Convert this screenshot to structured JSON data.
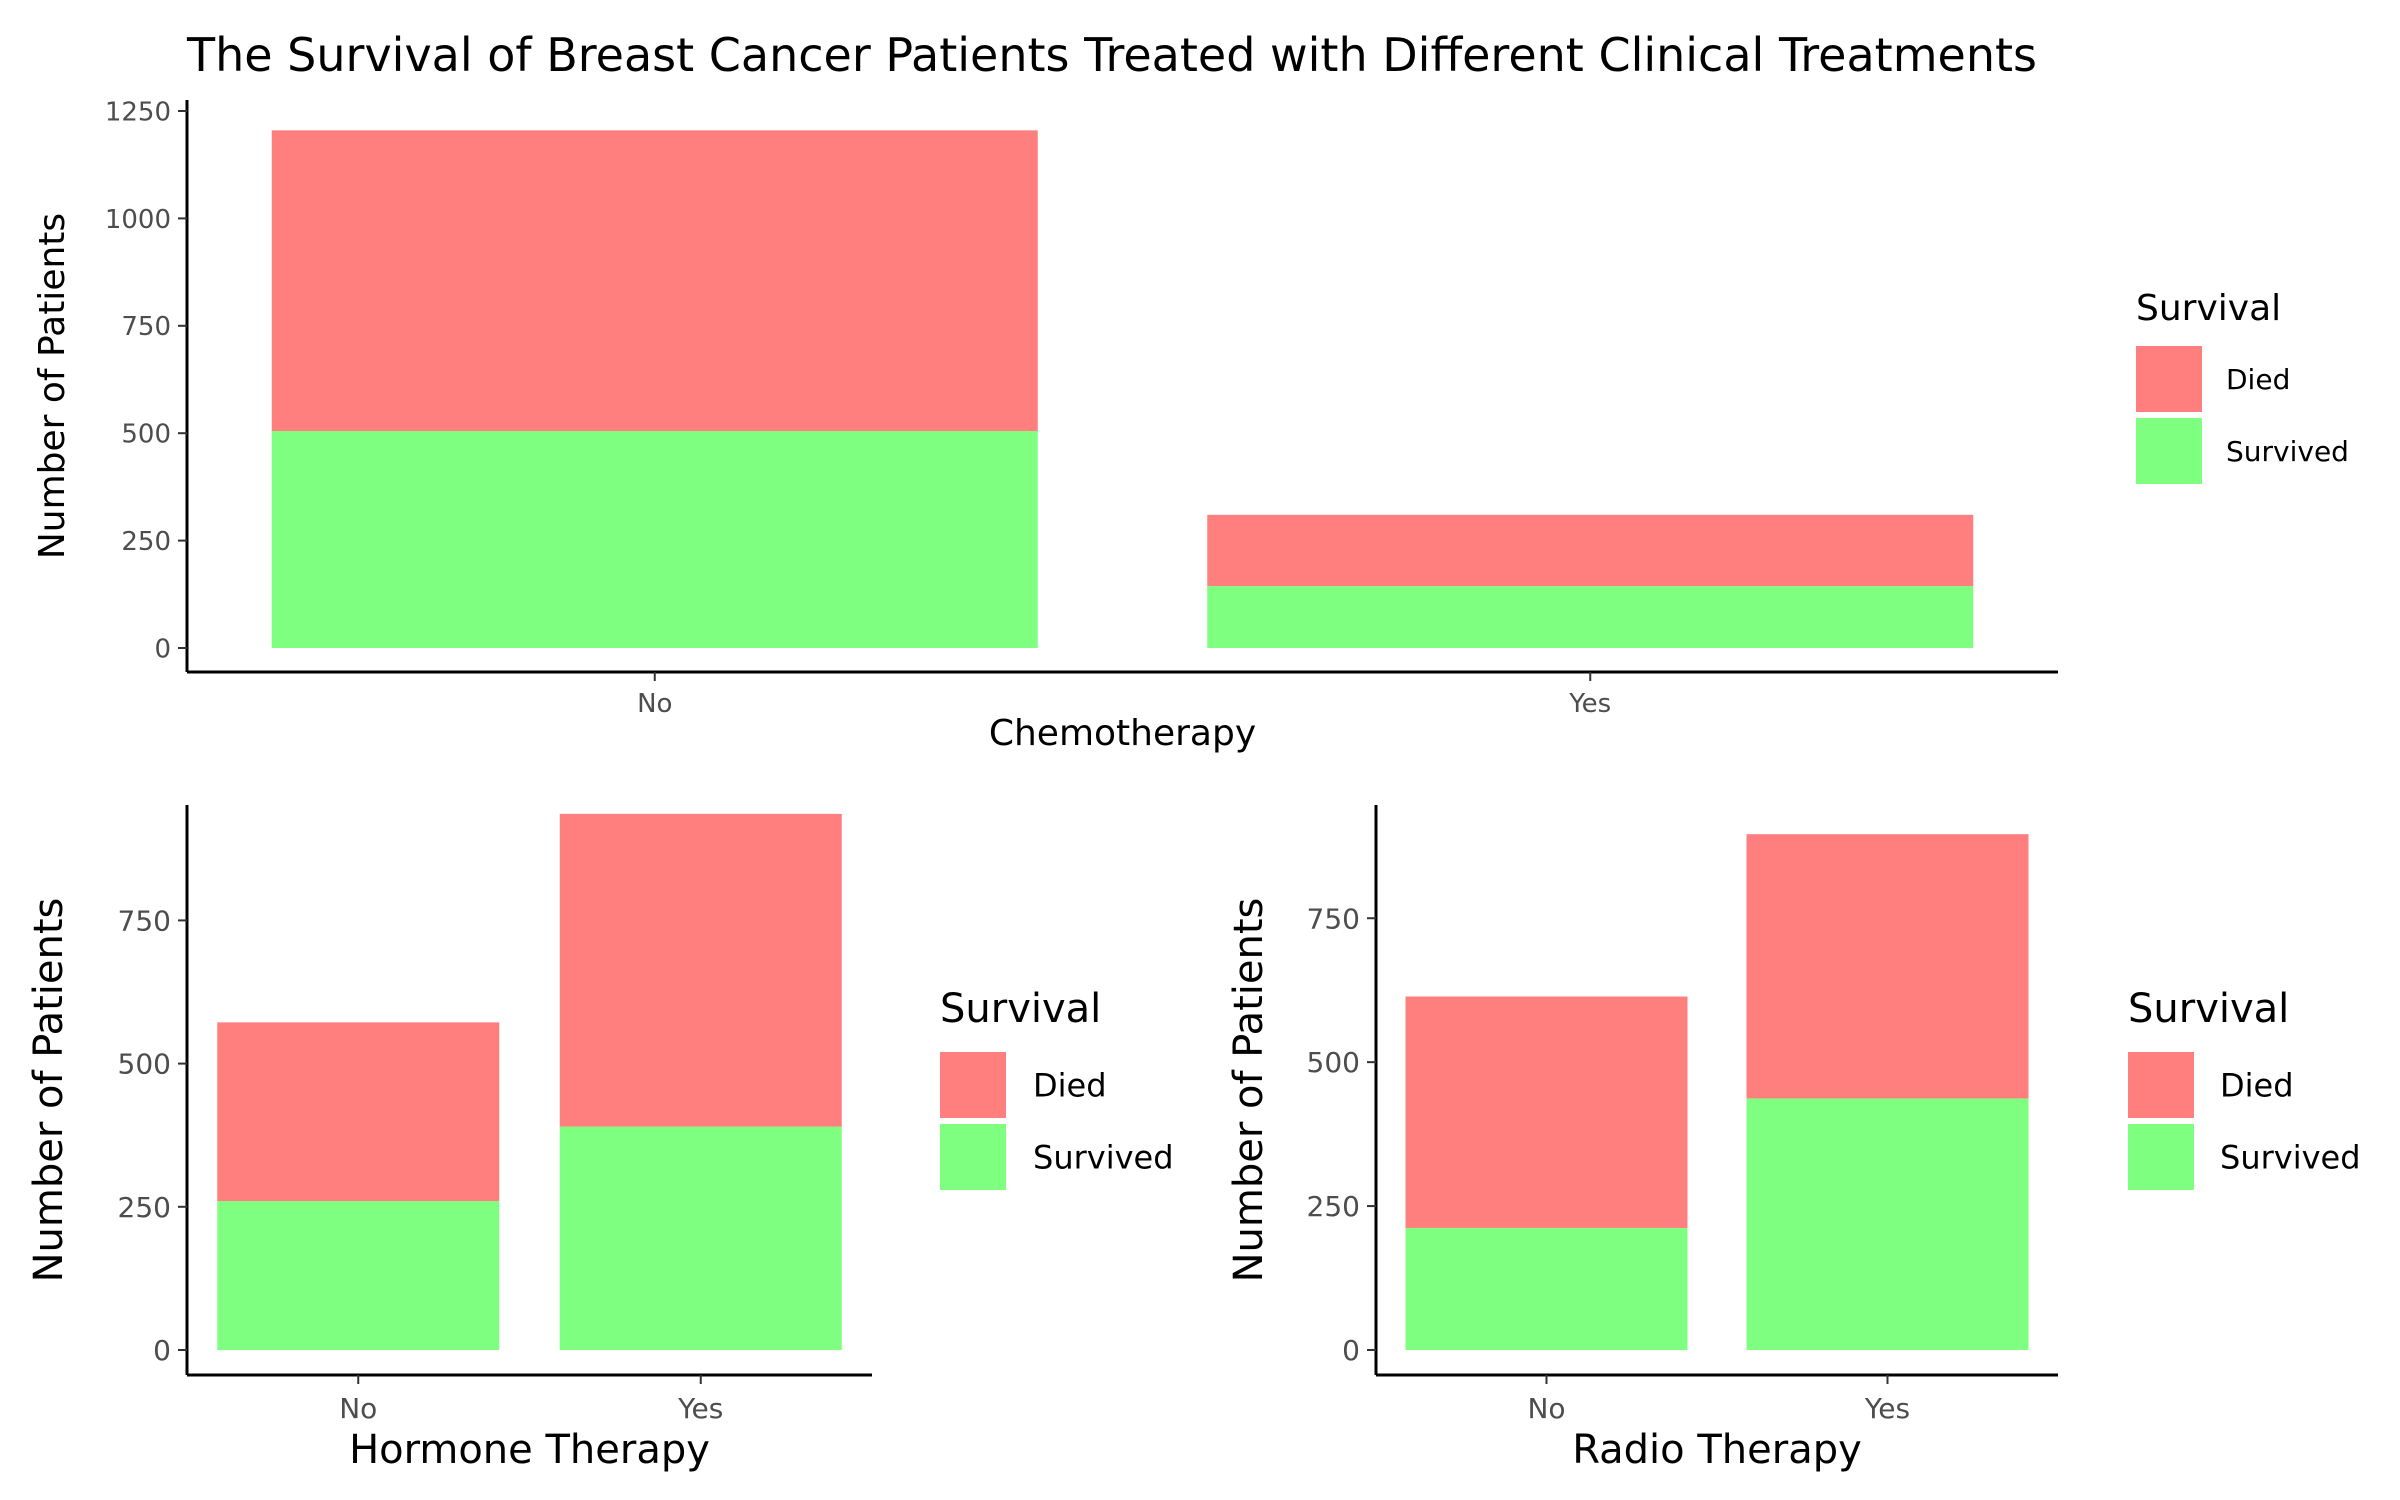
{
  "title": "The Survival of Breast Cancer Patients Treated with Different Clinical Treatments",
  "colors": {
    "Died": "#ff7f7f",
    "Survived": "#7fff7f"
  },
  "chart_data": [
    {
      "type": "bar",
      "stacked": true,
      "xlabel": "Chemotherapy",
      "ylabel": "Number of Patients",
      "categories": [
        "No",
        "Yes"
      ],
      "series": [
        {
          "name": "Survived",
          "values": [
            505,
            144
          ]
        },
        {
          "name": "Died",
          "values": [
            700,
            166
          ]
        }
      ],
      "ylim": [
        0,
        1250
      ],
      "yticks": [
        0,
        250,
        500,
        750,
        1000,
        1250
      ],
      "legend": {
        "title": "Survival",
        "position": "right",
        "entries": [
          "Died",
          "Survived"
        ]
      },
      "grid": false
    },
    {
      "type": "bar",
      "stacked": true,
      "xlabel": "Hormone Therapy",
      "ylabel": "Number of Patients",
      "categories": [
        "No",
        "Yes"
      ],
      "series": [
        {
          "name": "Survived",
          "values": [
            260,
            390
          ]
        },
        {
          "name": "Died",
          "values": [
            312,
            546
          ]
        }
      ],
      "ylim": [
        0,
        950
      ],
      "yticks": [
        0,
        250,
        500,
        750
      ],
      "legend": {
        "title": "Survival",
        "position": "right",
        "entries": [
          "Died",
          "Survived"
        ]
      },
      "grid": false
    },
    {
      "type": "bar",
      "stacked": true,
      "xlabel": "Radio Therapy",
      "ylabel": "Number of Patients",
      "categories": [
        "No",
        "Yes"
      ],
      "series": [
        {
          "name": "Survived",
          "values": [
            212,
            437
          ]
        },
        {
          "name": "Died",
          "values": [
            402,
            459
          ]
        }
      ],
      "ylim": [
        0,
        905
      ],
      "yticks": [
        0,
        250,
        500,
        750
      ],
      "legend": {
        "title": "Survival",
        "position": "right",
        "entries": [
          "Died",
          "Survived"
        ]
      },
      "grid": false
    }
  ]
}
